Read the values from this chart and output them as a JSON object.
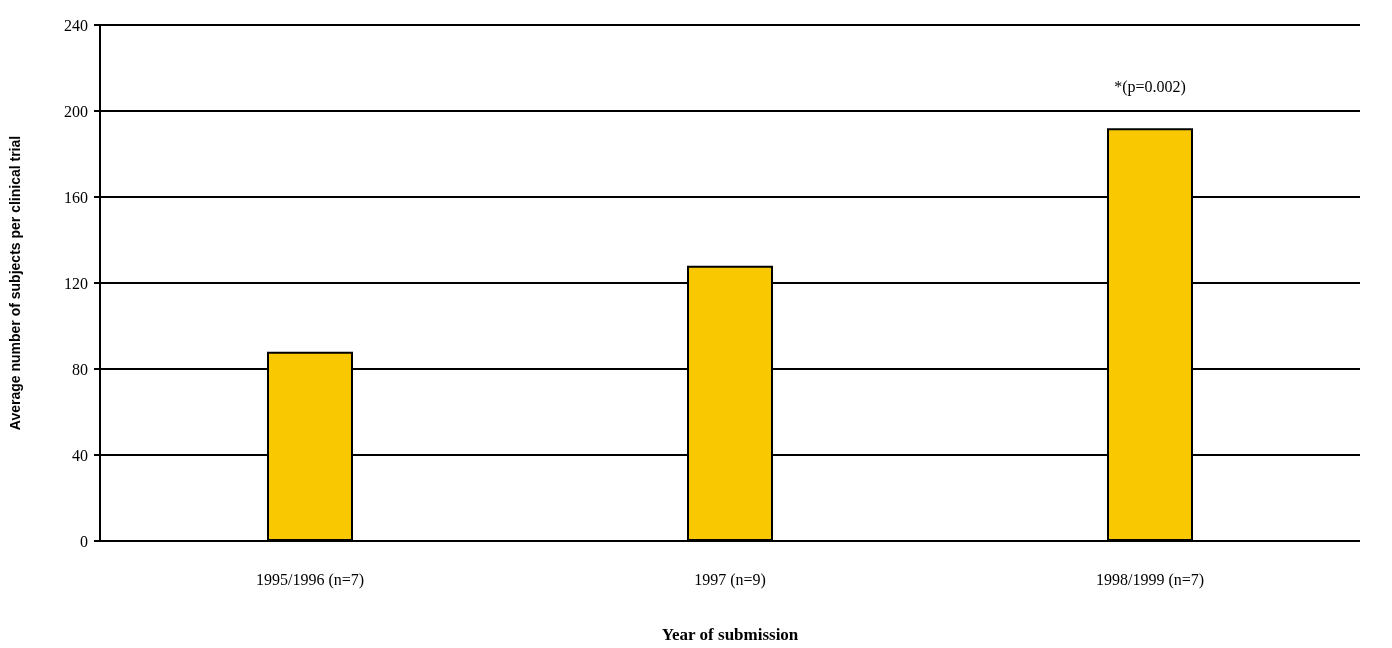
{
  "chart_data": {
    "type": "bar",
    "xlabel": "Year of submission",
    "ylabel": "Average number of subjects per clinical trial",
    "categories": [
      "1995/1996 (n=7)",
      "1997 (n=9)",
      "1998/1999 (n=7)"
    ],
    "values": [
      88,
      128,
      192
    ],
    "color": "#f9c800",
    "ylim": [
      0,
      240
    ],
    "yticks": [
      0,
      40,
      80,
      120,
      160,
      200,
      240
    ],
    "grid": "y",
    "annotations": [
      "*(p=0.002)"
    ]
  }
}
